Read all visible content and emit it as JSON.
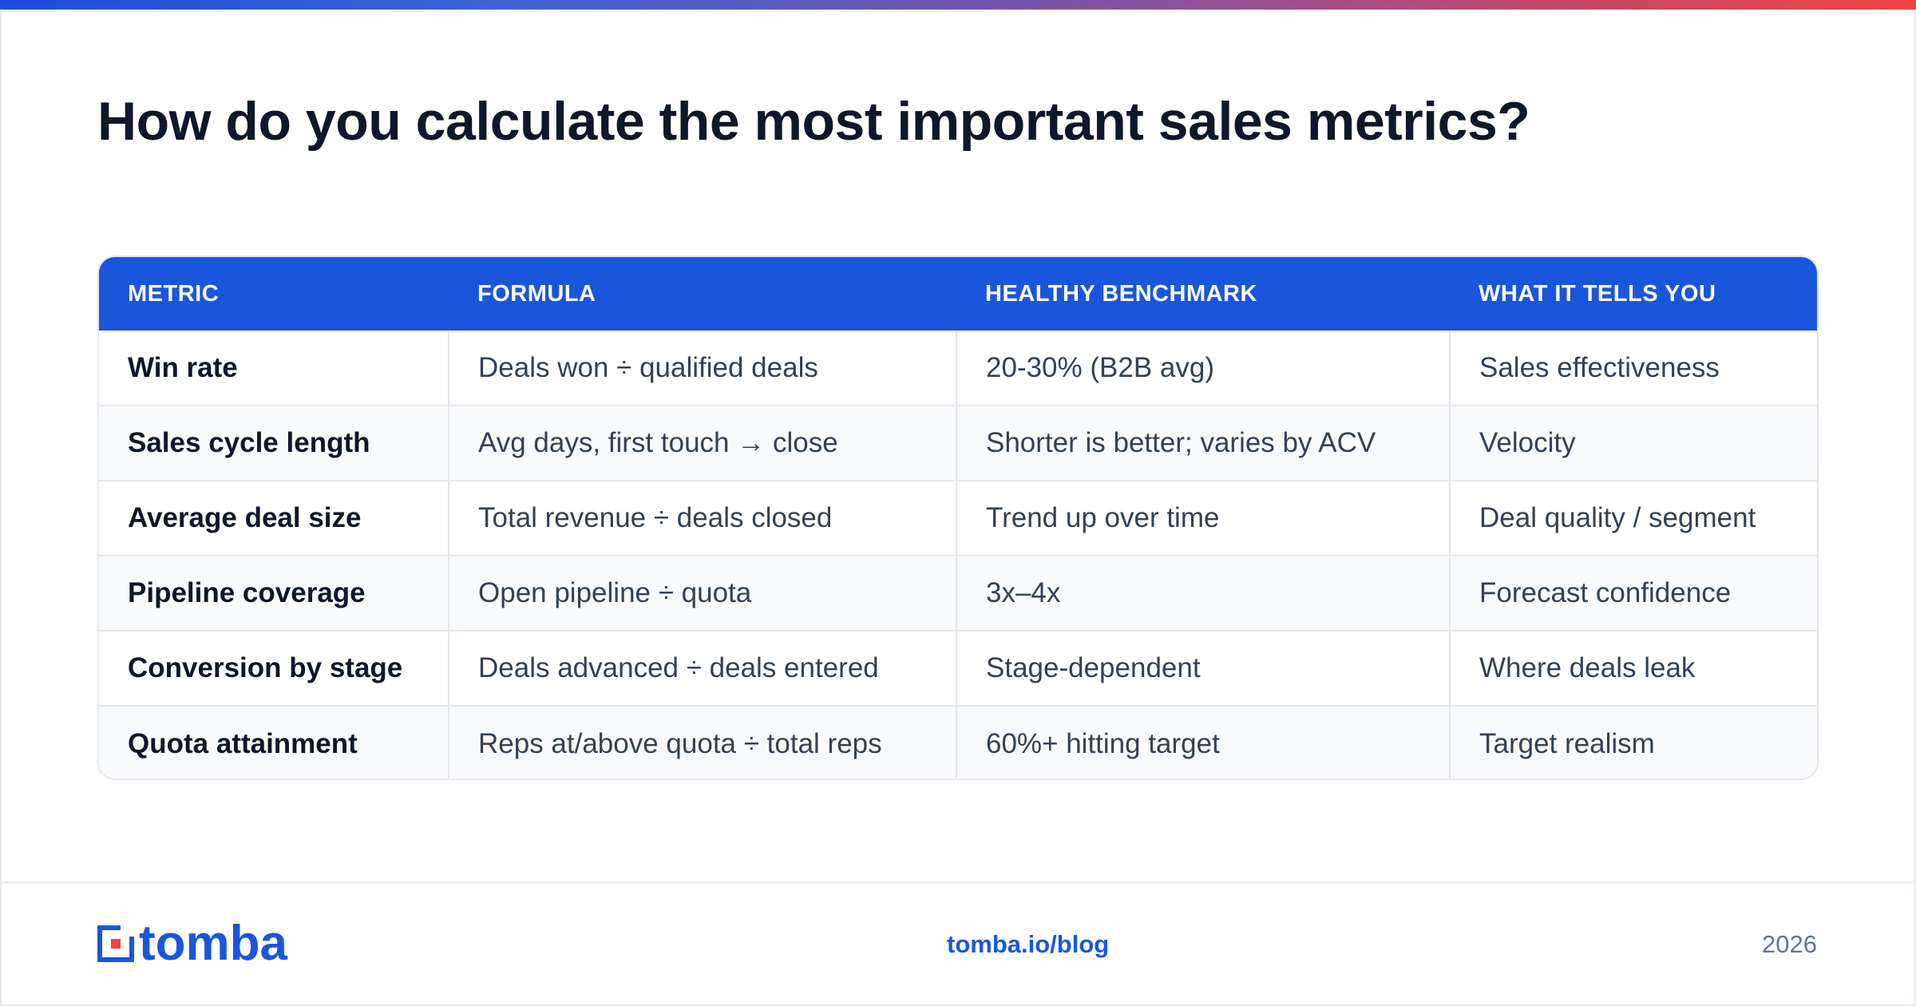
{
  "page": {
    "title": "How do you calculate the most important sales metrics?"
  },
  "table": {
    "headers": [
      "METRIC",
      "FORMULA",
      "HEALTHY BENCHMARK",
      "WHAT IT TELLS YOU"
    ],
    "rows": [
      [
        "Win rate",
        "Deals won ÷ qualified deals",
        "20-30% (B2B avg)",
        "Sales effectiveness"
      ],
      [
        "Sales cycle length",
        "Avg days, first touch → close",
        "Shorter is better; varies by ACV",
        "Velocity"
      ],
      [
        "Average deal size",
        "Total revenue ÷ deals closed",
        "Trend up over time",
        "Deal quality / segment"
      ],
      [
        "Pipeline coverage",
        "Open pipeline ÷ quota",
        "3x–4x",
        "Forecast confidence"
      ],
      [
        "Conversion by stage",
        "Deals advanced ÷ deals entered",
        "Stage-dependent",
        "Where deals leak"
      ],
      [
        "Quota attainment",
        "Reps at/above quota ÷ total reps",
        "60%+ hitting target",
        "Target realism"
      ]
    ]
  },
  "footer": {
    "brand": "tomba",
    "brand_icon": "tomba-logo-icon",
    "link": "tomba.io/blog",
    "year": "2026"
  },
  "colors": {
    "accent": "#1a56db",
    "accent_end": "#ef4444",
    "title": "#0f172a",
    "body_text": "#334155",
    "muted": "#64748b",
    "row_alt": "#f8fafc",
    "border": "#e5e7eb",
    "logo_red": "#ef4444"
  }
}
